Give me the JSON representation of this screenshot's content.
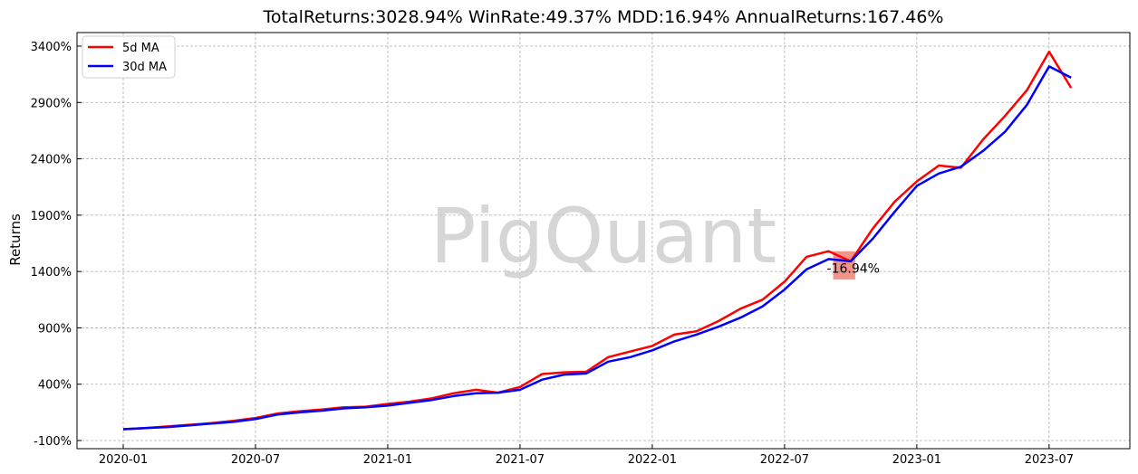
{
  "chart_data": {
    "type": "line",
    "title": "TotalReturns:3028.94%  WinRate:49.37%  MDD:16.94%  AnnualReturns:167.46%",
    "xlabel": "",
    "ylabel": "Returns",
    "watermark": "PigQuant",
    "grid": true,
    "legend_position": "top-left",
    "x_ticks": [
      "2020-01",
      "2020-07",
      "2021-01",
      "2021-07",
      "2022-01",
      "2022-07",
      "2023-01",
      "2023-07"
    ],
    "y_ticks": [
      -100,
      400,
      900,
      1400,
      1900,
      2400,
      2900,
      3400
    ],
    "y_tick_labels": [
      "-100%",
      "400%",
      "900%",
      "1400%",
      "1900%",
      "2400%",
      "2900%",
      "3400%"
    ],
    "ylim": [
      -100,
      3400
    ],
    "xlim": [
      "2020-01",
      "2023-08"
    ],
    "x": [
      "2020-01",
      "2020-02",
      "2020-03",
      "2020-04",
      "2020-05",
      "2020-06",
      "2020-07",
      "2020-08",
      "2020-09",
      "2020-10",
      "2020-11",
      "2020-12",
      "2021-01",
      "2021-02",
      "2021-03",
      "2021-04",
      "2021-05",
      "2021-06",
      "2021-07",
      "2021-08",
      "2021-09",
      "2021-10",
      "2021-11",
      "2021-12",
      "2022-01",
      "2022-02",
      "2022-03",
      "2022-04",
      "2022-05",
      "2022-06",
      "2022-07",
      "2022-08",
      "2022-09",
      "2022-10",
      "2022-11",
      "2022-12",
      "2023-01",
      "2023-02",
      "2023-03",
      "2023-04",
      "2023-05",
      "2023-06",
      "2023-07",
      "2023-08"
    ],
    "series": [
      {
        "name": "5d MA",
        "color": "#ff0000",
        "values": [
          0,
          10,
          25,
          40,
          55,
          75,
          100,
          140,
          160,
          175,
          195,
          200,
          225,
          245,
          275,
          320,
          350,
          325,
          375,
          490,
          505,
          510,
          640,
          690,
          740,
          840,
          870,
          960,
          1070,
          1150,
          1310,
          1530,
          1580,
          1490,
          1780,
          2020,
          2200,
          2340,
          2320,
          2570,
          2780,
          3010,
          3350,
          3030
        ]
      },
      {
        "name": "30d MA",
        "color": "#0000ff",
        "values": [
          0,
          10,
          20,
          35,
          50,
          65,
          90,
          130,
          150,
          165,
          185,
          195,
          210,
          235,
          260,
          295,
          320,
          325,
          350,
          440,
          485,
          495,
          600,
          640,
          700,
          780,
          840,
          910,
          990,
          1090,
          1240,
          1420,
          1510,
          1490,
          1690,
          1930,
          2160,
          2270,
          2330,
          2470,
          2640,
          2880,
          3220,
          3120
        ]
      }
    ],
    "annotations": [
      {
        "text": "-16.94%",
        "x": "2022-09",
        "y": 1430
      }
    ]
  }
}
